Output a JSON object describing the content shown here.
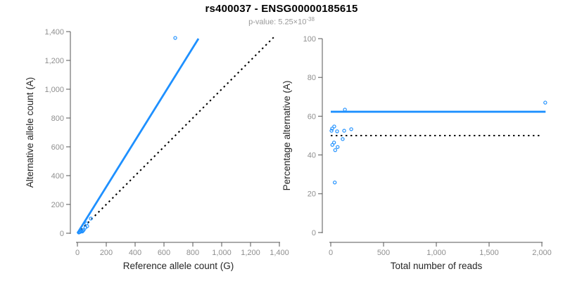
{
  "header": {
    "title": "rs400037 - ENSG00000185615",
    "subtitle_prefix": "p-value: 5.25×10",
    "subtitle_exponent": "-38"
  },
  "colors": {
    "accent_blue": "#1E90FF",
    "dashed_black": "#000000",
    "axis_line": "#555555",
    "tick_label": "#8f8f8f",
    "axis_label": "#262626",
    "title": "#000000",
    "subtitle": "#999999"
  },
  "chart_data": [
    {
      "type": "scatter",
      "name": "ref-vs-alt-counts",
      "xlabel": "Reference allele count (G)",
      "ylabel": "Alternative allele count (A)",
      "xlim": [
        0,
        1400
      ],
      "ylim": [
        0,
        1400
      ],
      "grid": false,
      "xticks": [
        0,
        200,
        400,
        600,
        800,
        1000,
        1200,
        1400
      ],
      "xtick_labels": [
        "0",
        "200",
        "400",
        "600",
        "800",
        "1,000",
        "1,200",
        "1,400"
      ],
      "yticks": [
        0,
        200,
        400,
        600,
        800,
        1000,
        1200,
        1400
      ],
      "ytick_labels": [
        "0",
        "200",
        "400",
        "600",
        "800",
        "1,000",
        "1,200",
        "1,400"
      ],
      "points": [
        [
          10,
          5
        ],
        [
          16,
          8
        ],
        [
          20,
          10
        ],
        [
          25,
          15
        ],
        [
          34,
          12
        ],
        [
          39,
          18
        ],
        [
          44,
          24
        ],
        [
          56,
          40
        ],
        [
          68,
          49
        ],
        [
          63,
          68
        ],
        [
          93,
          102
        ],
        [
          678,
          1356
        ]
      ],
      "lines": [
        {
          "name": "fit-line",
          "style": "solid",
          "color": "accent",
          "x1": 0,
          "y1": 0,
          "x2": 839,
          "y2": 1351
        },
        {
          "name": "identity-line",
          "style": "dotted",
          "color": "black",
          "x1": 0,
          "y1": 0,
          "x2": 1360,
          "y2": 1360
        }
      ]
    },
    {
      "type": "scatter",
      "name": "percentage-vs-total-reads",
      "xlabel": "Total number of reads",
      "ylabel": "Percentage alternative (A)",
      "xlim": [
        0,
        2000
      ],
      "ylim": [
        0,
        100
      ],
      "grid": false,
      "xticks": [
        0,
        500,
        1000,
        1500,
        2000
      ],
      "xtick_labels": [
        "0",
        "500",
        "1,000",
        "1,500",
        "2,000"
      ],
      "yticks": [
        0,
        20,
        40,
        60,
        80,
        100
      ],
      "ytick_labels": [
        "0",
        "20",
        "40",
        "60",
        "80",
        "100"
      ],
      "points": [
        [
          134,
          63.4
        ],
        [
          2032,
          67
        ],
        [
          13,
          53.6
        ],
        [
          33,
          54.7
        ],
        [
          7,
          52.5
        ],
        [
          60,
          52.2
        ],
        [
          127,
          52.5
        ],
        [
          194,
          53.3
        ],
        [
          113,
          48.2
        ],
        [
          31,
          46.4
        ],
        [
          15,
          45.2
        ],
        [
          65,
          44.1
        ],
        [
          42,
          42.5
        ],
        [
          38,
          25.8
        ]
      ],
      "lines": [
        {
          "name": "mean-percentage-line",
          "style": "solid",
          "color": "accent",
          "x1": 0,
          "y1": 62.3,
          "x2": 2035,
          "y2": 62.3
        },
        {
          "name": "fifty-percent-line",
          "style": "dotted",
          "color": "black",
          "x1": 0,
          "y1": 50,
          "x2": 1990,
          "y2": 50
        }
      ]
    }
  ]
}
